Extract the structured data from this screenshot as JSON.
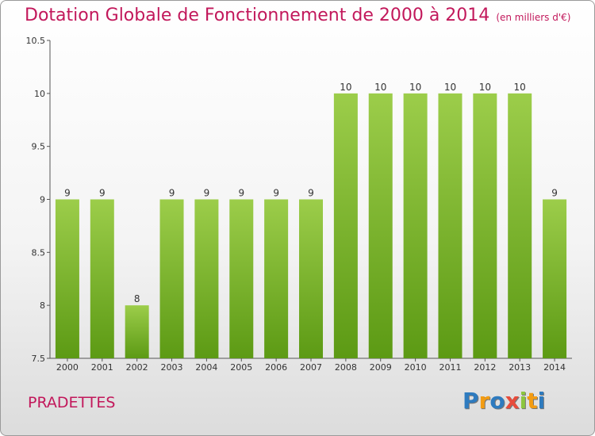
{
  "header": {
    "title": "Dotation Globale de Fonctionnement de 2000 à 2014",
    "unit": "(en milliers d'€)"
  },
  "footer": {
    "commune": "PRADETTES",
    "brand": "Proxiti"
  },
  "colors": {
    "title": "#c2185b",
    "bar_top": "#9ccd4a",
    "bar_bottom": "#5c9a14",
    "logo": [
      "#2e7bbf",
      "#f39c12",
      "#2e7bbf",
      "#e74c3c",
      "#8cc63f",
      "#f39c12",
      "#2e7bbf"
    ]
  },
  "chart_data": {
    "type": "bar",
    "categories": [
      "2000",
      "2001",
      "2002",
      "2003",
      "2004",
      "2005",
      "2006",
      "2007",
      "2008",
      "2009",
      "2010",
      "2011",
      "2012",
      "2013",
      "2014"
    ],
    "values": [
      9,
      9,
      8,
      9,
      9,
      9,
      9,
      9,
      10,
      10,
      10,
      10,
      10,
      10,
      9
    ],
    "title": "Dotation Globale de Fonctionnement de 2000 à 2014",
    "ylim": [
      7.5,
      10.5
    ],
    "yticks": [
      "7.5",
      "8",
      "8.5",
      "9",
      "9.5",
      "10",
      "10.5"
    ],
    "grid": false,
    "legend": "none"
  }
}
